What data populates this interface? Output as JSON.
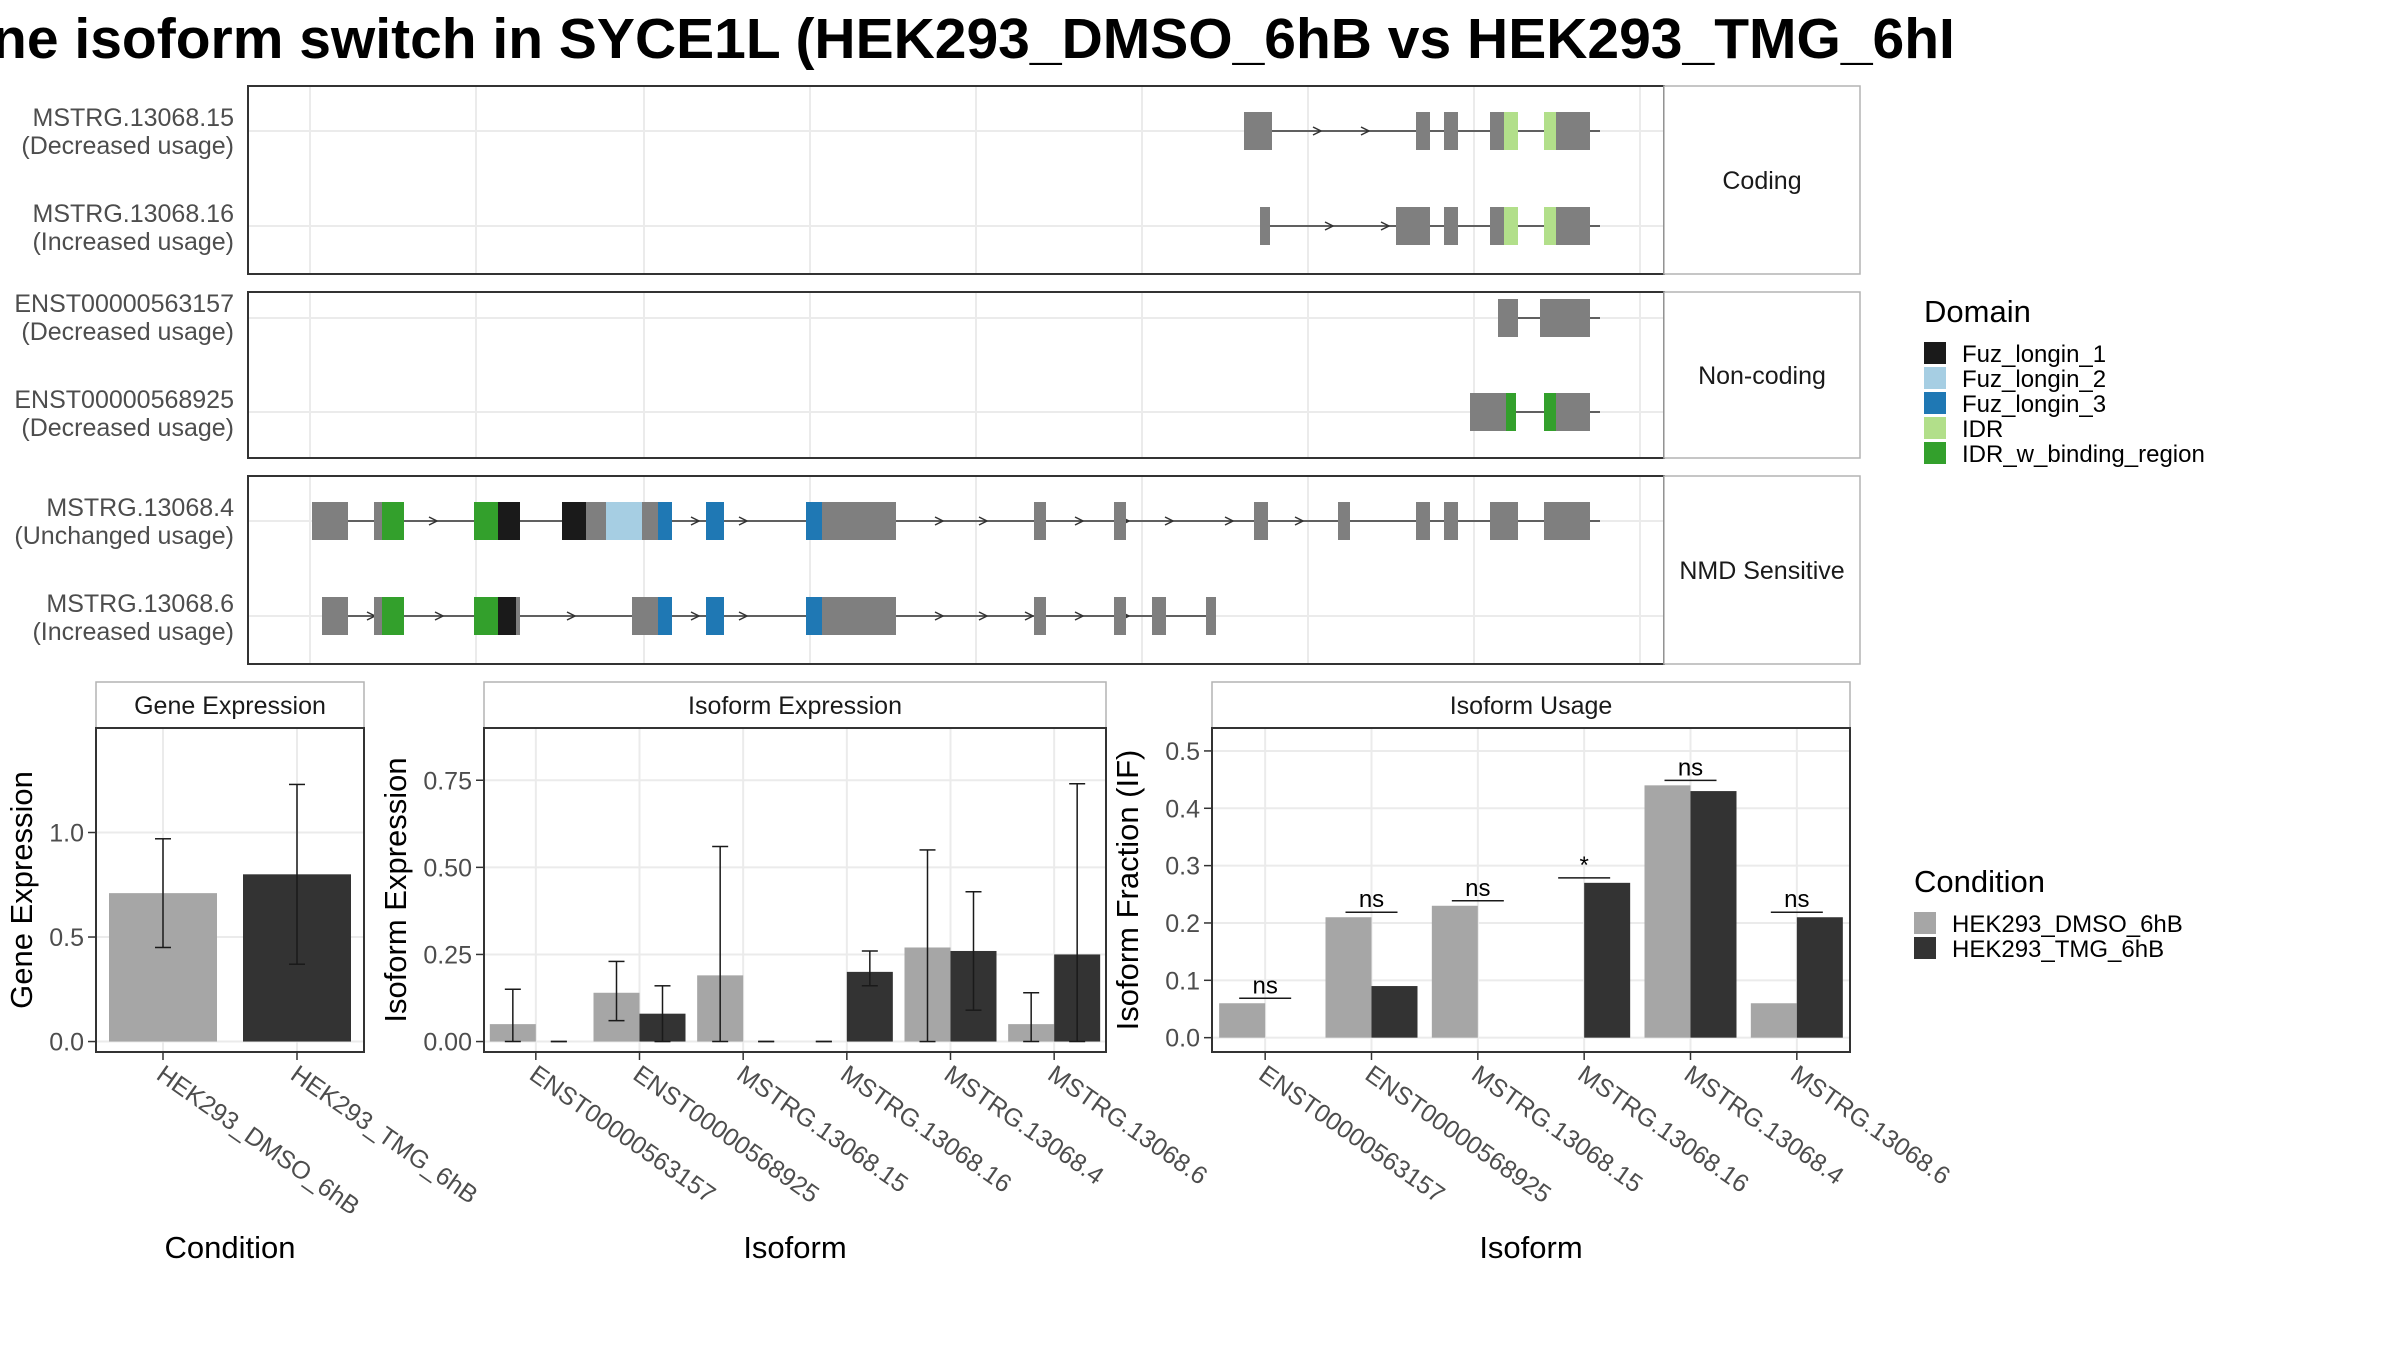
{
  "title": "ne isoform switch in SYCE1L (HEK293_DMSO_6hB vs HEK293_TMG_6hI",
  "colors": {
    "exon": "#7f7f7f",
    "dmso": "#a6a6a6",
    "tmg": "#333333",
    "Fuz_longin_1": "#1a1a1a",
    "Fuz_longin_2": "#a6cee3",
    "Fuz_longin_3": "#1f78b4",
    "IDR": "#b2df8a",
    "IDR_w_binding_region": "#33a02c"
  },
  "structure": {
    "facets": [
      "Coding",
      "Non-coding",
      "NMD Sensitive"
    ],
    "transcripts": [
      {
        "id": "MSTRG.13068.15",
        "usage": "(Decreased usage)",
        "facet": "Coding"
      },
      {
        "id": "MSTRG.13068.16",
        "usage": "(Increased usage)",
        "facet": "Coding"
      },
      {
        "id": "ENST00000563157",
        "usage": "(Decreased usage)",
        "facet": "Non-coding"
      },
      {
        "id": "ENST00000568925",
        "usage": "(Decreased usage)",
        "facet": "Non-coding"
      },
      {
        "id": "MSTRG.13068.4",
        "usage": "(Unchanged usage)",
        "facet": "NMD Sensitive"
      },
      {
        "id": "MSTRG.13068.6",
        "usage": "(Increased usage)",
        "facet": "NMD Sensitive"
      }
    ]
  },
  "domain_legend": {
    "title": "Domain",
    "items": [
      {
        "label": "Fuz_longin_1",
        "color": "#1a1a1a"
      },
      {
        "label": "Fuz_longin_2",
        "color": "#a6cee3"
      },
      {
        "label": "Fuz_longin_3",
        "color": "#1f78b4"
      },
      {
        "label": "IDR",
        "color": "#b2df8a"
      },
      {
        "label": "IDR_w_binding_region",
        "color": "#33a02c"
      }
    ]
  },
  "condition_legend": {
    "title": "Condition",
    "items": [
      {
        "label": "HEK293_DMSO_6hB",
        "color": "#a6a6a6"
      },
      {
        "label": "HEK293_TMG_6hB",
        "color": "#333333"
      }
    ]
  },
  "chart_data": [
    {
      "type": "bar",
      "title": "Gene Expression",
      "xlabel": "Condition",
      "ylabel": "Gene Expression",
      "ylim": [
        -0.05,
        1.5
      ],
      "yticks": [
        "0.0",
        "0.5",
        "1.0"
      ],
      "categories": [
        "HEK293_DMSO_6hB",
        "HEK293_TMG_6hB"
      ],
      "values": [
        0.71,
        0.8
      ],
      "error_low": [
        0.45,
        0.37
      ],
      "error_high": [
        0.97,
        1.23
      ]
    },
    {
      "type": "bar",
      "title": "Isoform Expression",
      "xlabel": "Isoform",
      "ylabel": "Isoform Expression",
      "ylim": [
        -0.03,
        0.9
      ],
      "yticks": [
        "0.00",
        "0.25",
        "0.50",
        "0.75"
      ],
      "categories": [
        "ENST00000563157",
        "ENST00000568925",
        "MSTRG.13068.15",
        "MSTRG.13068.16",
        "MSTRG.13068.4",
        "MSTRG.13068.6"
      ],
      "series": [
        {
          "name": "HEK293_DMSO_6hB",
          "values": [
            0.05,
            0.14,
            0.19,
            0.0,
            0.27,
            0.05
          ],
          "error_low": [
            0.0,
            0.06,
            0.0,
            0.0,
            0.0,
            0.0
          ],
          "error_high": [
            0.15,
            0.23,
            0.56,
            0.0,
            0.55,
            0.14
          ]
        },
        {
          "name": "HEK293_TMG_6hB",
          "values": [
            0.0,
            0.08,
            0.0,
            0.2,
            0.26,
            0.25
          ],
          "error_low": [
            0.0,
            0.0,
            0.0,
            0.16,
            0.09,
            0.0
          ],
          "error_high": [
            0.0,
            0.16,
            0.0,
            0.26,
            0.43,
            0.74
          ]
        }
      ]
    },
    {
      "type": "bar",
      "title": "Isoform Usage",
      "xlabel": "Isoform",
      "ylabel": "Isoform Fraction (IF)",
      "ylim": [
        -0.025,
        0.54
      ],
      "yticks": [
        "0.0",
        "0.1",
        "0.2",
        "0.3",
        "0.4",
        "0.5"
      ],
      "categories": [
        "ENST00000563157",
        "ENST00000568925",
        "MSTRG.13068.15",
        "MSTRG.13068.16",
        "MSTRG.13068.4",
        "MSTRG.13068.6"
      ],
      "series": [
        {
          "name": "HEK293_DMSO_6hB",
          "values": [
            0.06,
            0.21,
            0.23,
            0.0,
            0.44,
            0.06
          ]
        },
        {
          "name": "HEK293_TMG_6hB",
          "values": [
            0.0,
            0.09,
            0.0,
            0.27,
            0.43,
            0.21
          ]
        }
      ],
      "significance": [
        "ns",
        "ns",
        "ns",
        "*",
        "ns",
        "ns"
      ]
    }
  ]
}
